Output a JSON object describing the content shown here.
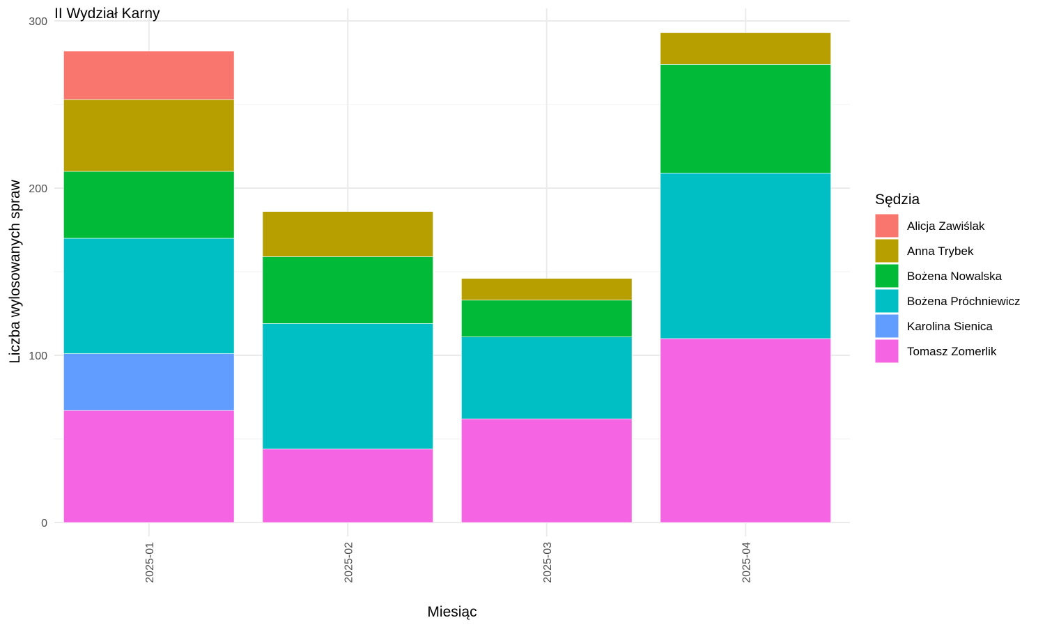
{
  "chart_data": {
    "type": "bar",
    "stacked": true,
    "title": "II Wydział Karny",
    "xlabel": "Miesiąc",
    "ylabel": "Liczba wylosowanych spraw",
    "ylim": [
      0,
      300
    ],
    "yticks": [
      0,
      100,
      200,
      300
    ],
    "grid": true,
    "legend_title": "Sędzia",
    "legend_position": "right",
    "categories": [
      "2025-01",
      "2025-02",
      "2025-03",
      "2025-04"
    ],
    "series": [
      {
        "name": "Alicja Zawiślak",
        "color": "#F8766D",
        "values": [
          29,
          0,
          0,
          0
        ]
      },
      {
        "name": "Anna Trybek",
        "color": "#B79F00",
        "values": [
          43,
          27,
          13,
          19
        ]
      },
      {
        "name": "Bożena Nowalska",
        "color": "#00BA38",
        "values": [
          40,
          40,
          22,
          65
        ]
      },
      {
        "name": "Bożena Próchniewicz",
        "color": "#00BFC4",
        "values": [
          69,
          75,
          49,
          99
        ]
      },
      {
        "name": "Karolina Sienica",
        "color": "#619CFF",
        "values": [
          34,
          0,
          0,
          0
        ]
      },
      {
        "name": "Tomasz Zomerlik",
        "color": "#F564E3",
        "values": [
          67,
          44,
          62,
          110
        ]
      }
    ]
  }
}
